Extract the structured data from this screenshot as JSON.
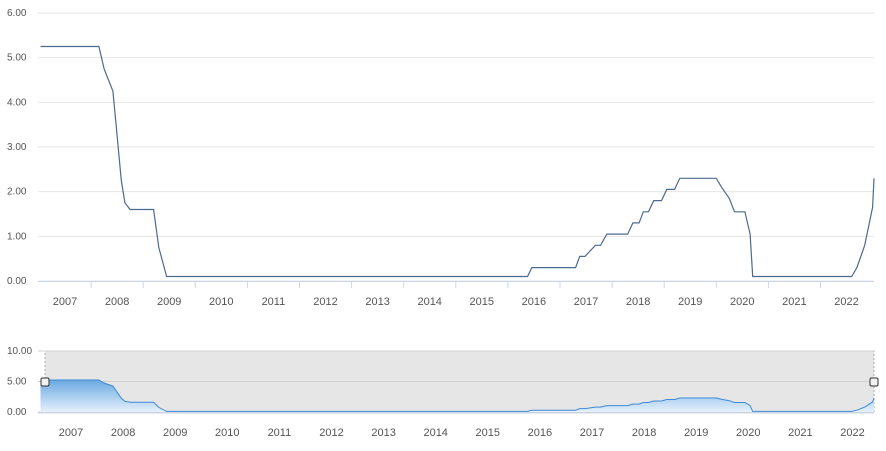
{
  "chart_data": [
    {
      "type": "line",
      "title": "",
      "xlabel": "",
      "ylabel": "",
      "x_tick_labels": [
        "2007",
        "2008",
        "2009",
        "2010",
        "2011",
        "2012",
        "2013",
        "2014",
        "2015",
        "2016",
        "2017",
        "2018",
        "2019",
        "2020",
        "2021",
        "2022"
      ],
      "y_tick_labels": [
        "0.00",
        "1.00",
        "2.00",
        "3.00",
        "4.00",
        "5.00",
        "6.00"
      ],
      "ylim": [
        0,
        6
      ],
      "xlim": [
        2006.53,
        2022.6
      ],
      "grid": true,
      "series": [
        {
          "color": "#4d6a8f",
          "x": [
            2006.53,
            2007.65,
            2007.75,
            2007.92,
            2007.98,
            2008.04,
            2008.08,
            2008.15,
            2008.25,
            2008.7,
            2008.8,
            2008.95,
            2015.88,
            2015.96,
            2016.8,
            2016.88,
            2016.98,
            2017.18,
            2017.28,
            2017.4,
            2017.48,
            2017.8,
            2017.9,
            2018.02,
            2018.1,
            2018.2,
            2018.3,
            2018.45,
            2018.55,
            2018.7,
            2018.8,
            2018.95,
            2019.5,
            2019.6,
            2019.75,
            2019.85,
            2020.05,
            2020.15,
            2020.2,
            2022.1,
            2022.2,
            2022.35,
            2022.5,
            2022.6
          ],
          "y": [
            5.25,
            5.25,
            4.75,
            4.25,
            3.5,
            2.75,
            2.25,
            1.75,
            1.6,
            1.6,
            0.75,
            0.1,
            0.1,
            0.3,
            0.3,
            0.55,
            0.55,
            0.8,
            0.8,
            1.05,
            1.05,
            1.05,
            1.3,
            1.3,
            1.55,
            1.55,
            1.8,
            1.8,
            2.05,
            2.05,
            2.3,
            2.3,
            2.3,
            2.1,
            1.85,
            1.55,
            1.55,
            1.05,
            0.1,
            0.1,
            0.3,
            0.8,
            1.65,
            2.3
          ]
        }
      ]
    },
    {
      "type": "area",
      "title": "",
      "xlabel": "",
      "ylabel": "",
      "x_tick_labels": [
        "2007",
        "2008",
        "2009",
        "2010",
        "2011",
        "2012",
        "2013",
        "2014",
        "2015",
        "2016",
        "2017",
        "2018",
        "2019",
        "2020",
        "2021",
        "2022"
      ],
      "y_tick_labels": [
        "0.00",
        "5.00",
        "10.00"
      ],
      "ylim": [
        0,
        10
      ],
      "xlim": [
        2006.53,
        2022.6
      ],
      "grid": true,
      "colors": {
        "line": "#3d8ad6",
        "fill_top": "#6aa9e3",
        "fill_bottom": "#e6f1fb",
        "selection": "#e6e6e6"
      },
      "series": [
        {
          "x": [
            2006.53,
            2007.65,
            2007.75,
            2007.92,
            2007.98,
            2008.04,
            2008.08,
            2008.15,
            2008.25,
            2008.7,
            2008.8,
            2008.95,
            2015.88,
            2015.96,
            2016.8,
            2016.88,
            2016.98,
            2017.18,
            2017.28,
            2017.4,
            2017.48,
            2017.8,
            2017.9,
            2018.02,
            2018.1,
            2018.2,
            2018.3,
            2018.45,
            2018.55,
            2018.7,
            2018.8,
            2018.95,
            2019.5,
            2019.6,
            2019.75,
            2019.85,
            2020.05,
            2020.15,
            2020.2,
            2022.1,
            2022.2,
            2022.35,
            2022.5,
            2022.6
          ],
          "y": [
            5.25,
            5.25,
            4.75,
            4.25,
            3.5,
            2.75,
            2.25,
            1.75,
            1.6,
            1.6,
            0.75,
            0.1,
            0.1,
            0.3,
            0.3,
            0.55,
            0.55,
            0.8,
            0.8,
            1.05,
            1.05,
            1.05,
            1.3,
            1.3,
            1.55,
            1.55,
            1.8,
            1.8,
            2.05,
            2.05,
            2.3,
            2.3,
            2.3,
            2.1,
            1.85,
            1.55,
            1.55,
            1.05,
            0.1,
            0.1,
            0.3,
            0.8,
            1.65,
            2.3
          ]
        }
      ]
    }
  ]
}
